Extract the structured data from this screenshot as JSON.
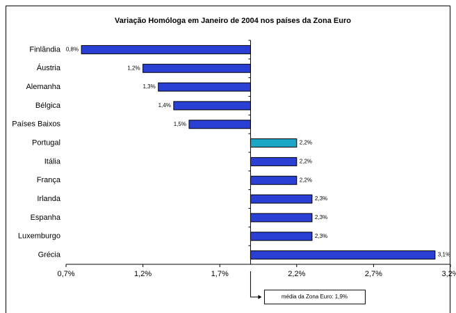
{
  "chart_data": {
    "type": "bar",
    "orientation": "horizontal",
    "title": "Variação Homóloga em Janeiro de 2004 nos países da Zona Euro",
    "categories": [
      "Finlândia",
      "Áustria",
      "Alemanha",
      "Bélgica",
      "Países Baixos",
      "Portugal",
      "Itália",
      "França",
      "Irlanda",
      "Espanha",
      "Luxemburgo",
      "Grécia"
    ],
    "values": [
      0.8,
      1.2,
      1.3,
      1.4,
      1.5,
      2.2,
      2.2,
      2.2,
      2.3,
      2.3,
      2.3,
      3.1
    ],
    "value_labels": [
      "0,8%",
      "1,2%",
      "1,3%",
      "1,4%",
      "1,5%",
      "2,2%",
      "2,2%",
      "2,2%",
      "2,3%",
      "2,3%",
      "2,3%",
      "3,1%"
    ],
    "colors": [
      "#2a3fd4",
      "#2a3fd4",
      "#2a3fd4",
      "#2a3fd4",
      "#2a3fd4",
      "#1aa6c4",
      "#2a3fd4",
      "#2a3fd4",
      "#2a3fd4",
      "#2a3fd4",
      "#2a3fd4",
      "#2a3fd4"
    ],
    "xlim": [
      0.7,
      3.2
    ],
    "xticks": [
      {
        "value": 0.7,
        "label": "0,7%"
      },
      {
        "value": 1.2,
        "label": "1,2%"
      },
      {
        "value": 1.7,
        "label": "1,7%"
      },
      {
        "value": 2.2,
        "label": "2,2%"
      },
      {
        "value": 2.7,
        "label": "2,7%"
      },
      {
        "value": 3.2,
        "label": "3,2%"
      }
    ],
    "baseline": {
      "value": 1.9,
      "label": "média da Zona Euro: 1,9%"
    }
  }
}
